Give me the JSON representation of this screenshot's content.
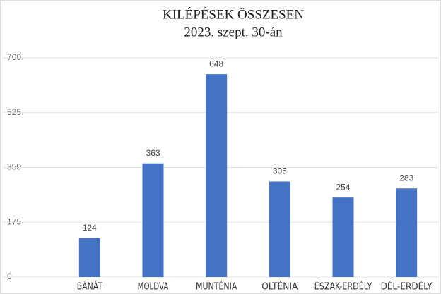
{
  "chart_data": {
    "type": "bar",
    "title": "KILÉPÉSEK ÖSSZESEN",
    "subtitle": "2023. szept. 30-án",
    "categories": [
      "BÁNÁT",
      "MOLDVA",
      "MUNTÉNIA",
      "OLTÉNIA",
      "ÉSZAK-ERDÉLY",
      "DÉL-ERDÉLY"
    ],
    "values": [
      124,
      363,
      648,
      305,
      254,
      283
    ],
    "color": "#4472c4",
    "ylim": [
      0,
      700
    ],
    "yticks": [
      0,
      175,
      350,
      525,
      700
    ],
    "grid": true
  }
}
